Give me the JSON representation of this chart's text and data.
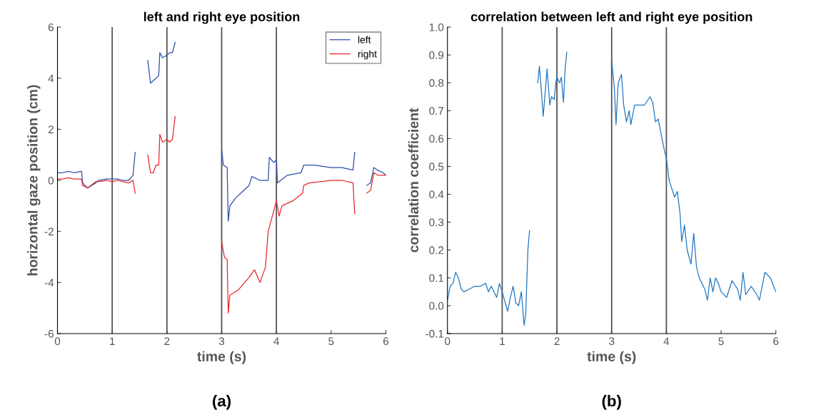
{
  "chart_data": [
    {
      "type": "line",
      "title": "left and right eye position",
      "xlabel": "time (s)",
      "ylabel": "horizontal gaze position (cm)",
      "annotations": [
        "(a)"
      ],
      "xlim": [
        0,
        6
      ],
      "xticks": [
        0,
        1,
        2,
        3,
        4,
        5,
        6
      ],
      "ylim": [
        -6,
        6
      ],
      "yticks": [
        -6,
        -4,
        -2,
        0,
        2,
        4,
        6
      ],
      "legend": "top right",
      "grid": false,
      "marker": "none",
      "line_style": "solid",
      "ref_lines": [
        {
          "axis": "x",
          "value": 1,
          "color": "#555555"
        },
        {
          "axis": "x",
          "value": 2,
          "color": "#555555"
        },
        {
          "axis": "x",
          "value": 3,
          "color": "#555555"
        },
        {
          "axis": "x",
          "value": 4,
          "color": "#555555"
        }
      ],
      "series": [
        {
          "name": "left",
          "color": "#2b4fa8",
          "x": [
            0,
            0.1,
            0.2,
            0.3,
            0.44,
            0.46,
            0.55,
            0.7,
            0.75,
            0.9,
            1.0,
            1.1,
            1.2,
            1.3,
            1.38,
            1.42,
            1.5,
            1.65,
            1.7,
            1.75,
            1.8,
            1.85,
            1.87,
            1.92,
            2.0,
            2.05,
            2.1,
            2.15,
            2.5,
            3.0,
            3.03,
            3.1,
            3.12,
            3.15,
            3.25,
            3.35,
            3.5,
            3.55,
            3.7,
            3.85,
            3.87,
            3.95,
            4.0,
            4.02,
            4.2,
            4.45,
            4.5,
            4.7,
            5.0,
            5.2,
            5.4,
            5.43,
            5.5,
            5.65,
            5.72,
            5.78,
            5.85,
            5.95,
            6.0
          ],
          "values": [
            0.3,
            0.3,
            0.35,
            0.3,
            0.35,
            -0.1,
            -0.3,
            -0.1,
            0.0,
            0.05,
            0.05,
            0.05,
            0.0,
            0.0,
            0.2,
            1.1,
            null,
            4.7,
            3.8,
            3.9,
            4.0,
            4.1,
            5.0,
            4.8,
            4.9,
            5.0,
            5.0,
            5.4,
            null,
            1.2,
            0.6,
            0.5,
            -1.6,
            -1.0,
            -0.7,
            -0.5,
            -0.2,
            0.15,
            0.0,
            0.0,
            0.9,
            0.7,
            0.8,
            -0.1,
            0.2,
            0.3,
            0.6,
            0.6,
            0.5,
            0.5,
            0.4,
            1.1,
            null,
            -0.2,
            -0.1,
            0.5,
            0.4,
            0.3,
            0.2
          ]
        },
        {
          "name": "right",
          "color": "#e8262a",
          "x": [
            0,
            0.1,
            0.2,
            0.3,
            0.44,
            0.46,
            0.55,
            0.7,
            0.75,
            0.9,
            1.0,
            1.1,
            1.2,
            1.3,
            1.38,
            1.42,
            1.5,
            1.65,
            1.7,
            1.75,
            1.8,
            1.85,
            1.87,
            1.92,
            2.0,
            2.05,
            2.1,
            2.15,
            2.5,
            3.0,
            3.05,
            3.1,
            3.12,
            3.15,
            3.3,
            3.5,
            3.6,
            3.7,
            3.8,
            3.85,
            3.9,
            4.0,
            4.05,
            4.1,
            4.3,
            4.48,
            4.5,
            4.6,
            5.0,
            5.2,
            5.4,
            5.43,
            5.5,
            5.65,
            5.72,
            5.78,
            5.85,
            5.95,
            6.0
          ],
          "values": [
            0.05,
            0.05,
            0.1,
            0.05,
            0.05,
            -0.2,
            -0.3,
            -0.05,
            -0.05,
            0.0,
            -0.05,
            0.0,
            -0.05,
            -0.1,
            0.0,
            -0.5,
            null,
            1.0,
            0.3,
            0.3,
            0.6,
            0.6,
            1.8,
            1.5,
            1.6,
            1.5,
            1.6,
            2.5,
            null,
            -2.4,
            -3.0,
            -3.1,
            -5.2,
            -4.5,
            -4.3,
            -3.8,
            -3.5,
            -4.0,
            -3.4,
            -2.0,
            -1.6,
            -0.8,
            -1.4,
            -1.0,
            -0.8,
            -0.5,
            -0.2,
            -0.1,
            0.0,
            0.0,
            -0.1,
            -1.3,
            null,
            -0.5,
            -0.4,
            0.3,
            0.2,
            0.2,
            0.2
          ]
        }
      ]
    },
    {
      "type": "line",
      "title": "correlation between left and right eye position",
      "xlabel": "time (s)",
      "ylabel": "correlation coefficient",
      "annotations": [
        "(b)"
      ],
      "xlim": [
        0,
        6
      ],
      "xticks": [
        0,
        1,
        2,
        3,
        4,
        5,
        6
      ],
      "ylim": [
        -0.1,
        1.0
      ],
      "yticks": [
        {
          "value": -0.1,
          "label": "-0.1"
        },
        {
          "value": 0,
          "label": "0.0"
        },
        {
          "value": 0.1,
          "label": "0.1"
        },
        {
          "value": 0.2,
          "label": "0.2"
        },
        {
          "value": 0.3,
          "label": "0.3"
        },
        {
          "value": 0.4,
          "label": "0.4"
        },
        {
          "value": 0.5,
          "label": "0.5"
        },
        {
          "value": 0.6,
          "label": "0.6"
        },
        {
          "value": 0.7,
          "label": "0.7"
        },
        {
          "value": 0.8,
          "label": "0.8"
        },
        {
          "value": 0.9,
          "label": "0.9"
        },
        {
          "value": 1.0,
          "label": "1.0"
        }
      ],
      "grid": false,
      "marker": "none",
      "line_style": "solid",
      "ref_lines": [
        {
          "axis": "x",
          "value": 1,
          "color": "#555555"
        },
        {
          "axis": "x",
          "value": 2,
          "color": "#555555"
        },
        {
          "axis": "x",
          "value": 3,
          "color": "#555555"
        },
        {
          "axis": "x",
          "value": 4,
          "color": "#555555"
        }
      ],
      "series": [
        {
          "color": "#1f77c4",
          "x": [
            0,
            0.05,
            0.1,
            0.15,
            0.2,
            0.25,
            0.3,
            0.4,
            0.5,
            0.6,
            0.7,
            0.75,
            0.8,
            0.85,
            0.9,
            0.95,
            1.0,
            1.1,
            1.15,
            1.2,
            1.25,
            1.3,
            1.35,
            1.4,
            1.43,
            1.47,
            1.5,
            1.6,
            1.65,
            1.68,
            1.72,
            1.75,
            1.8,
            1.82,
            1.87,
            1.9,
            1.95,
            1.98,
            2.0,
            2.05,
            2.08,
            2.12,
            2.15,
            2.18,
            2.6,
            3.0,
            3.05,
            3.08,
            3.12,
            3.18,
            3.22,
            3.27,
            3.32,
            3.35,
            3.42,
            3.5,
            3.6,
            3.7,
            3.75,
            3.8,
            3.85,
            3.9,
            3.95,
            4.0,
            4.05,
            4.1,
            4.15,
            4.2,
            4.25,
            4.28,
            4.33,
            4.38,
            4.45,
            4.5,
            4.55,
            4.6,
            4.65,
            4.7,
            4.75,
            4.8,
            4.85,
            4.9,
            4.95,
            5.0,
            5.1,
            5.2,
            5.3,
            5.35,
            5.4,
            5.45,
            5.55,
            5.65,
            5.7,
            5.8,
            5.9,
            6.0
          ],
          "values": [
            0.02,
            0.07,
            0.08,
            0.12,
            0.1,
            0.06,
            0.05,
            0.06,
            0.07,
            0.07,
            0.08,
            0.05,
            0.07,
            0.05,
            0.03,
            0.08,
            0.05,
            -0.02,
            0.03,
            0.07,
            0.01,
            0.0,
            0.05,
            -0.07,
            -0.03,
            0.2,
            0.27,
            null,
            0.8,
            0.86,
            0.76,
            0.68,
            0.8,
            0.85,
            0.72,
            0.75,
            0.74,
            0.8,
            0.82,
            0.8,
            0.82,
            0.73,
            0.85,
            0.91,
            null,
            0.88,
            0.78,
            0.65,
            0.8,
            0.83,
            0.72,
            0.66,
            0.7,
            0.65,
            0.72,
            0.72,
            0.72,
            0.75,
            0.73,
            0.66,
            0.67,
            0.62,
            0.57,
            0.53,
            0.45,
            0.42,
            0.39,
            0.41,
            0.33,
            0.23,
            0.29,
            0.2,
            0.15,
            0.26,
            0.14,
            0.1,
            0.08,
            0.06,
            0.02,
            0.1,
            0.05,
            0.1,
            0.08,
            0.05,
            0.03,
            0.09,
            0.06,
            0.02,
            0.12,
            0.04,
            0.07,
            0.04,
            0.02,
            0.12,
            0.1,
            0.05
          ]
        }
      ]
    }
  ]
}
